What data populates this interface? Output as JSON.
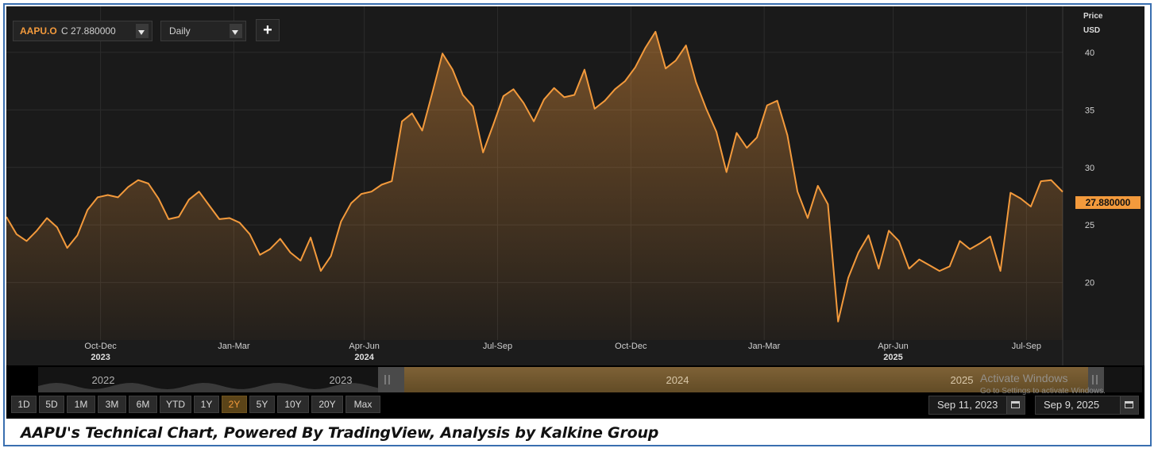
{
  "toolbar": {
    "ric": "AAPU.O",
    "close_label": "C 27.880000",
    "interval": "Daily",
    "add_label": "+"
  },
  "axis": {
    "price_title": "Price",
    "price_unit": "USD",
    "current_price_label": "27.880000"
  },
  "ranges": [
    "1D",
    "5D",
    "1M",
    "3M",
    "6M",
    "YTD",
    "1Y",
    "2Y",
    "5Y",
    "10Y",
    "20Y",
    "Max"
  ],
  "active_range": "2Y",
  "date_range": {
    "start": "Sep 11, 2023",
    "end": "Sep 9, 2025"
  },
  "watermark": {
    "title": "Activate Windows",
    "subtitle": "Go to Settings to activate Windows."
  },
  "caption": "AAPU's Technical Chart, Powered By TradingView, Analysis by Kalkine Group",
  "colors": {
    "line": "#f39a3c",
    "background": "#000000",
    "plot_background": "#1a1a1a",
    "frame": "#3a6fb0"
  },
  "navigator": {
    "years": [
      "2022",
      "2023",
      "2024",
      "2025"
    ]
  },
  "chart_data": {
    "type": "area",
    "x_range": [
      "2023-09-11",
      "2025-09-09"
    ],
    "ylim": [
      15,
      44
    ],
    "y_ticks": [
      20,
      25,
      30,
      35,
      40
    ],
    "x_tick_labels": [
      {
        "label": "Oct-Dec",
        "date": "2023-11-15"
      },
      {
        "label": "Jan-Mar",
        "date": "2024-02-15"
      },
      {
        "label": "Apr-Jun",
        "date": "2024-05-15"
      },
      {
        "label": "Jul-Sep",
        "date": "2024-08-15"
      },
      {
        "label": "Oct-Dec",
        "date": "2024-11-15"
      },
      {
        "label": "Jan-Mar",
        "date": "2025-02-15"
      },
      {
        "label": "Apr-Jun",
        "date": "2025-05-15"
      },
      {
        "label": "Jul-Sep",
        "date": "2025-08-15"
      }
    ],
    "year_labels": [
      {
        "label": "2023",
        "date": "2023-11-15"
      },
      {
        "label": "2024",
        "date": "2024-05-15"
      },
      {
        "label": "2025",
        "date": "2025-05-15"
      }
    ],
    "grid": true,
    "series": [
      {
        "values": [
          [
            "2023-09-11",
            25.7
          ],
          [
            "2023-09-18",
            24.2
          ],
          [
            "2023-09-25",
            23.6
          ],
          [
            "2023-10-02",
            24.5
          ],
          [
            "2023-10-09",
            25.6
          ],
          [
            "2023-10-16",
            24.8
          ],
          [
            "2023-10-23",
            23.0
          ],
          [
            "2023-10-30",
            24.1
          ],
          [
            "2023-11-06",
            26.3
          ],
          [
            "2023-11-13",
            27.4
          ],
          [
            "2023-11-20",
            27.6
          ],
          [
            "2023-11-27",
            27.4
          ],
          [
            "2023-12-04",
            28.3
          ],
          [
            "2023-12-11",
            28.9
          ],
          [
            "2023-12-18",
            28.6
          ],
          [
            "2023-12-25",
            27.3
          ],
          [
            "2024-01-01",
            25.5
          ],
          [
            "2024-01-08",
            25.7
          ],
          [
            "2024-01-15",
            27.2
          ],
          [
            "2024-01-22",
            27.9
          ],
          [
            "2024-01-29",
            26.7
          ],
          [
            "2024-02-05",
            25.5
          ],
          [
            "2024-02-12",
            25.6
          ],
          [
            "2024-02-19",
            25.2
          ],
          [
            "2024-02-26",
            24.2
          ],
          [
            "2024-03-04",
            22.4
          ],
          [
            "2024-03-11",
            22.9
          ],
          [
            "2024-03-18",
            23.8
          ],
          [
            "2024-03-25",
            22.6
          ],
          [
            "2024-04-01",
            21.9
          ],
          [
            "2024-04-08",
            23.9
          ],
          [
            "2024-04-15",
            21.0
          ],
          [
            "2024-04-22",
            22.3
          ],
          [
            "2024-04-29",
            25.3
          ],
          [
            "2024-05-06",
            26.9
          ],
          [
            "2024-05-13",
            27.7
          ],
          [
            "2024-05-20",
            27.9
          ],
          [
            "2024-05-27",
            28.5
          ],
          [
            "2024-06-03",
            28.8
          ],
          [
            "2024-06-10",
            34.0
          ],
          [
            "2024-06-17",
            34.7
          ],
          [
            "2024-06-24",
            33.2
          ],
          [
            "2024-07-01",
            36.5
          ],
          [
            "2024-07-08",
            39.9
          ],
          [
            "2024-07-15",
            38.5
          ],
          [
            "2024-07-22",
            36.3
          ],
          [
            "2024-07-29",
            35.3
          ],
          [
            "2024-08-05",
            31.3
          ],
          [
            "2024-08-12",
            33.7
          ],
          [
            "2024-08-19",
            36.2
          ],
          [
            "2024-08-26",
            36.8
          ],
          [
            "2024-09-02",
            35.6
          ],
          [
            "2024-09-09",
            34.0
          ],
          [
            "2024-09-16",
            35.9
          ],
          [
            "2024-09-23",
            36.9
          ],
          [
            "2024-09-30",
            36.1
          ],
          [
            "2024-10-07",
            36.3
          ],
          [
            "2024-10-14",
            38.5
          ],
          [
            "2024-10-21",
            35.1
          ],
          [
            "2024-10-28",
            35.8
          ],
          [
            "2024-11-04",
            36.8
          ],
          [
            "2024-11-11",
            37.5
          ],
          [
            "2024-11-18",
            38.7
          ],
          [
            "2024-11-25",
            40.4
          ],
          [
            "2024-12-02",
            41.8
          ],
          [
            "2024-12-09",
            38.6
          ],
          [
            "2024-12-16",
            39.3
          ],
          [
            "2024-12-23",
            40.6
          ],
          [
            "2024-12-30",
            37.4
          ],
          [
            "2025-01-06",
            35.1
          ],
          [
            "2025-01-13",
            33.1
          ],
          [
            "2025-01-20",
            29.6
          ],
          [
            "2025-01-27",
            33.0
          ],
          [
            "2025-02-03",
            31.7
          ],
          [
            "2025-02-10",
            32.6
          ],
          [
            "2025-02-17",
            35.4
          ],
          [
            "2025-02-24",
            35.8
          ],
          [
            "2025-03-03",
            32.8
          ],
          [
            "2025-03-10",
            27.9
          ],
          [
            "2025-03-17",
            25.6
          ],
          [
            "2025-03-24",
            28.4
          ],
          [
            "2025-03-31",
            26.8
          ],
          [
            "2025-04-07",
            16.6
          ],
          [
            "2025-04-14",
            20.4
          ],
          [
            "2025-04-21",
            22.6
          ],
          [
            "2025-04-28",
            24.1
          ],
          [
            "2025-05-05",
            21.2
          ],
          [
            "2025-05-12",
            24.5
          ],
          [
            "2025-05-19",
            23.6
          ],
          [
            "2025-05-26",
            21.2
          ],
          [
            "2025-06-02",
            22.0
          ],
          [
            "2025-06-09",
            21.5
          ],
          [
            "2025-06-16",
            21.0
          ],
          [
            "2025-06-23",
            21.4
          ],
          [
            "2025-06-30",
            23.6
          ],
          [
            "2025-07-07",
            22.9
          ],
          [
            "2025-07-14",
            23.4
          ],
          [
            "2025-07-21",
            24.0
          ],
          [
            "2025-07-28",
            21.0
          ],
          [
            "2025-08-04",
            27.8
          ],
          [
            "2025-08-11",
            27.3
          ],
          [
            "2025-08-18",
            26.6
          ],
          [
            "2025-08-25",
            28.8
          ],
          [
            "2025-09-01",
            28.9
          ],
          [
            "2025-09-09",
            27.88
          ]
        ]
      }
    ]
  }
}
